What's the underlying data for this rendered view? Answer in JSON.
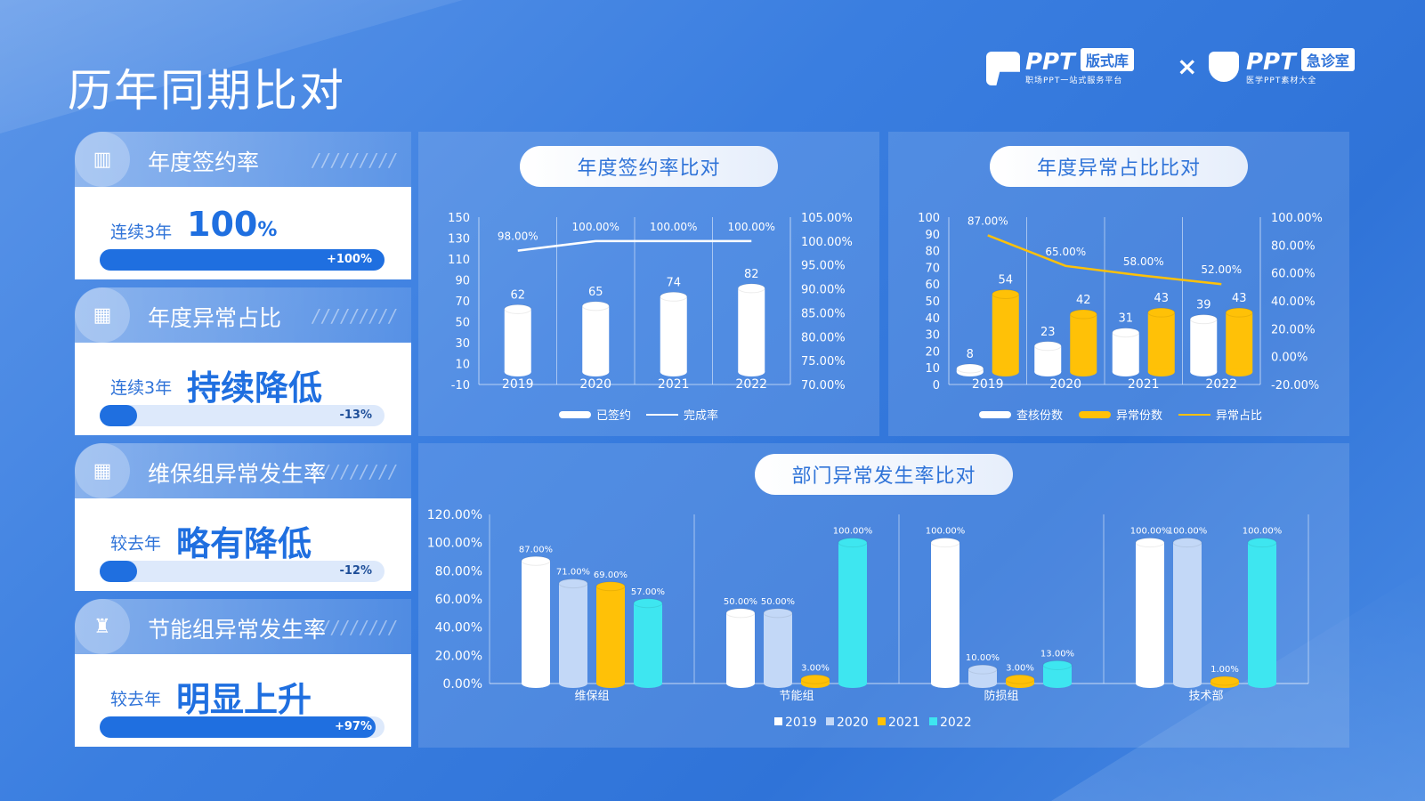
{
  "page_title": "历年同期比对",
  "brand": {
    "left_name": "PPT",
    "left_tag": "版式库",
    "left_slogan": "职场PPT一站式服务平台",
    "separator": "×",
    "right_name": "PPT",
    "right_tag": "急诊室",
    "right_slogan": "医学PPT素材大全"
  },
  "kpis": [
    {
      "label": "年度签约率",
      "prefix": "连续3年",
      "value": "100",
      "unit": "%",
      "change": "+100%",
      "fill": 1.0
    },
    {
      "label": "年度异常占比",
      "prefix": "连续3年",
      "value": "持续降低",
      "unit": "",
      "change": "-13%",
      "fill": 0.13
    },
    {
      "label": "维保组异常发生率",
      "prefix": "较去年",
      "value": "略有降低",
      "unit": "",
      "change": "-12%",
      "fill": 0.13
    },
    {
      "label": "节能组异常发生率",
      "prefix": "较去年",
      "value": "明显上升",
      "unit": "",
      "change": "+97%",
      "fill": 0.97
    }
  ],
  "chart_data": [
    {
      "type": "bar",
      "title": "年度签约率比对",
      "categories": [
        "2019",
        "2020",
        "2021",
        "2022"
      ],
      "series": [
        {
          "name": "已签约",
          "values": [
            62,
            65,
            74,
            82
          ],
          "color": "#ffffff"
        },
        {
          "name": "完成率",
          "values": [
            98,
            100,
            100,
            100
          ],
          "labels": [
            "98.00%",
            "100.00%",
            "100.00%",
            "100.00%"
          ],
          "kind": "line",
          "color": "#ffffff"
        }
      ],
      "ylim": [
        -10,
        150
      ],
      "yticks": [
        150,
        130,
        110,
        90,
        70,
        50,
        30,
        10,
        -10
      ],
      "y2lim": [
        70,
        105
      ],
      "y2ticks": [
        "105.00%",
        "100.00%",
        "95.00%",
        "90.00%",
        "85.00%",
        "80.00%",
        "75.00%",
        "70.00%"
      ],
      "legend": "bottom"
    },
    {
      "type": "bar",
      "title": "年度异常占比比对",
      "categories": [
        "2019",
        "2020",
        "2021",
        "2022"
      ],
      "series": [
        {
          "name": "查核份数",
          "values": [
            8,
            23,
            31,
            39
          ],
          "color": "#ffffff"
        },
        {
          "name": "异常份数",
          "values": [
            54,
            42,
            43,
            43
          ],
          "color": "#ffc107"
        },
        {
          "name": "异常占比",
          "values": [
            87,
            65,
            58,
            52
          ],
          "labels": [
            "87.00%",
            "65.00%",
            "58.00%",
            "52.00%"
          ],
          "kind": "line",
          "color": "#ffc107"
        }
      ],
      "ylim": [
        0,
        100
      ],
      "yticks": [
        100,
        90,
        80,
        70,
        60,
        50,
        40,
        30,
        20,
        10,
        0
      ],
      "y2lim": [
        -20,
        100
      ],
      "y2ticks": [
        "100.00%",
        "80.00%",
        "60.00%",
        "40.00%",
        "20.00%",
        "0.00%",
        "-20.00%"
      ],
      "legend": "bottom"
    },
    {
      "type": "bar",
      "title": "部门异常发生率比对",
      "categories": [
        "维保组",
        "节能组",
        "防损组",
        "技术部"
      ],
      "series": [
        {
          "name": "2019",
          "values": [
            87,
            50,
            100,
            100
          ],
          "color": "#ffffff"
        },
        {
          "name": "2020",
          "values": [
            71,
            50,
            10,
            100
          ],
          "color": "#c3d8f7"
        },
        {
          "name": "2021",
          "values": [
            69,
            3,
            3,
            1
          ],
          "color": "#ffc107"
        },
        {
          "name": "2022",
          "values": [
            57,
            100,
            13,
            100
          ],
          "color": "#3ee6f0"
        }
      ],
      "value_labels": [
        [
          "87.00%",
          "50.00%",
          "100.00%",
          "100.00%"
        ],
        [
          "71.00%",
          "50.00%",
          "10.00%",
          "100.00%"
        ],
        [
          "69.00%",
          "3.00%",
          "3.00%",
          "1.00%"
        ],
        [
          "57.00%",
          "100.00%",
          "13.00%",
          "100.00%"
        ]
      ],
      "ylim": [
        0,
        120
      ],
      "yticks": [
        "120.00%",
        "100.00%",
        "80.00%",
        "60.00%",
        "40.00%",
        "20.00%",
        "0.00%"
      ],
      "legend": "bottom"
    }
  ]
}
